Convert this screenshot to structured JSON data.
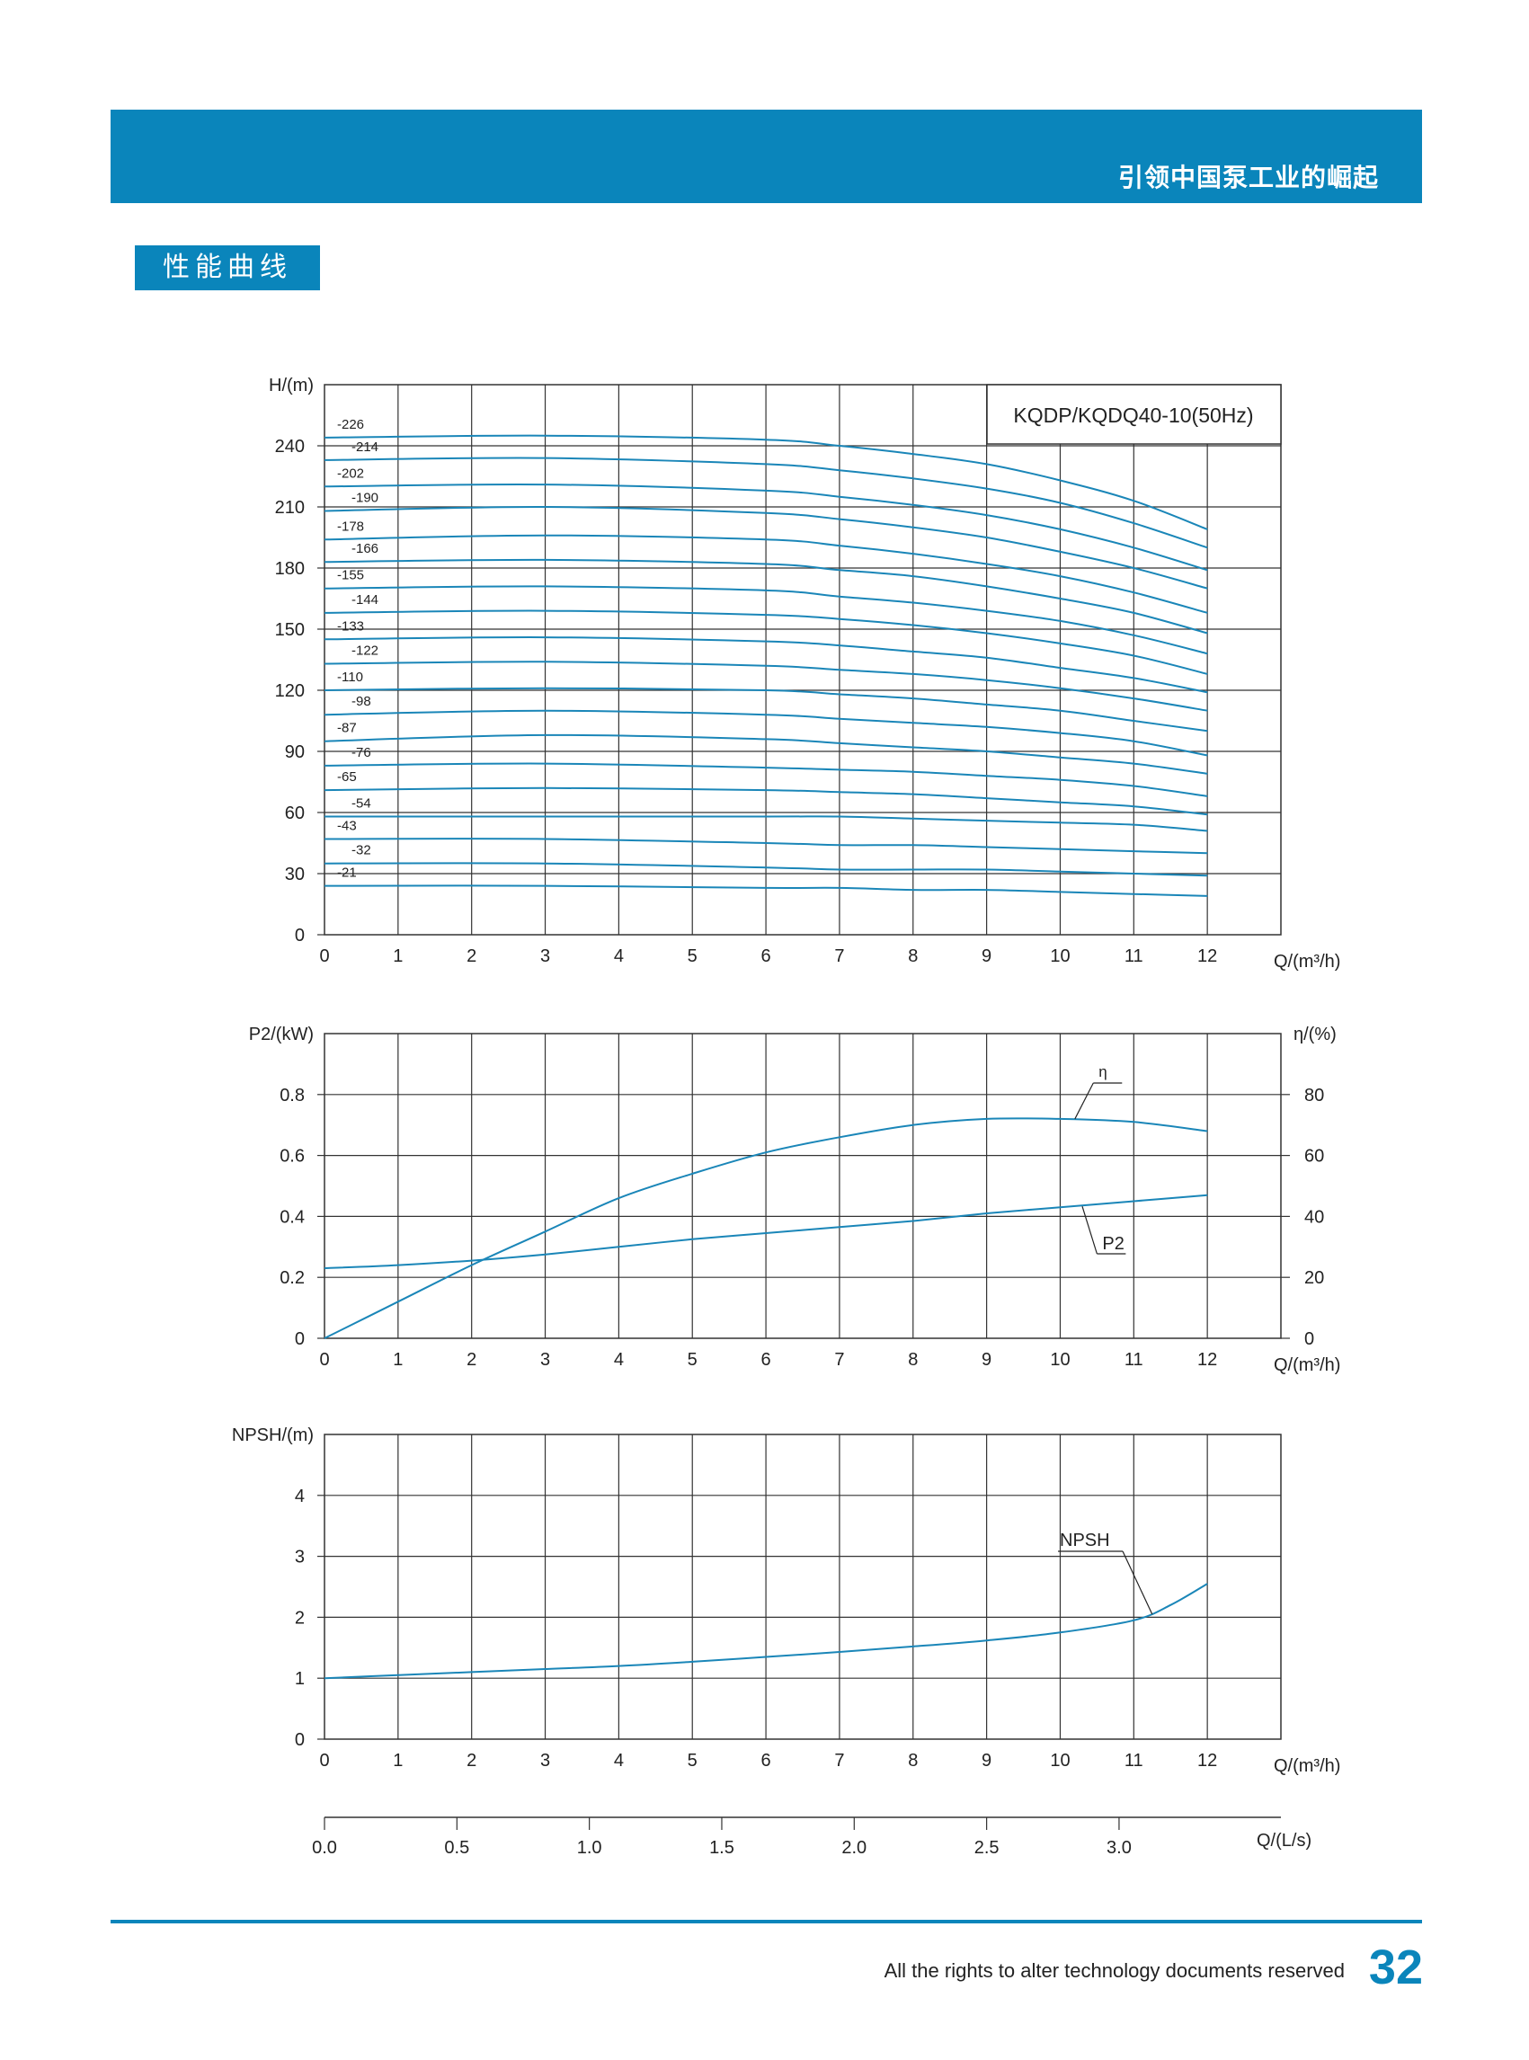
{
  "header": {
    "slogan": "引领中国泵工业的崛起",
    "section_title": "性能曲线"
  },
  "footer": {
    "notice": "All the rights to alter technology documents reserved",
    "page_number": "32"
  },
  "colors": {
    "brand": "#0a85bb",
    "curve": "#1a86b8",
    "grid": "#333333"
  },
  "chart_data": [
    {
      "type": "line",
      "title": "KQDP/KQDQ40-10(50Hz)",
      "ylabel": "H/(m)",
      "xlabel": "Q/(m³/h)",
      "xlim": [
        0,
        13
      ],
      "ylim": [
        0,
        270
      ],
      "x_ticks": [
        "0",
        "1",
        "2",
        "3",
        "4",
        "5",
        "6",
        "7",
        "8",
        "9",
        "10",
        "11",
        "12"
      ],
      "y_ticks": [
        "0",
        "30",
        "60",
        "90",
        "120",
        "150",
        "180",
        "210",
        "240"
      ],
      "grid": true,
      "series": [
        {
          "name": "-226",
          "x": [
            0,
            3,
            6,
            7,
            8,
            9,
            10,
            11,
            12
          ],
          "y": [
            244,
            245,
            243,
            240,
            236,
            231,
            223,
            213,
            199
          ]
        },
        {
          "name": "-214",
          "x": [
            0,
            3,
            6,
            7,
            8,
            9,
            10,
            11,
            12
          ],
          "y": [
            233,
            234,
            231,
            228,
            224,
            219,
            212,
            202,
            190
          ]
        },
        {
          "name": "-202",
          "x": [
            0,
            3,
            6,
            7,
            8,
            9,
            10,
            11,
            12
          ],
          "y": [
            220,
            221,
            218,
            215,
            211,
            206,
            199,
            190,
            179
          ]
        },
        {
          "name": "-190",
          "x": [
            0,
            3,
            6,
            7,
            8,
            9,
            10,
            11,
            12
          ],
          "y": [
            208,
            210,
            207,
            204,
            200,
            195,
            188,
            180,
            170
          ]
        },
        {
          "name": "-178",
          "x": [
            0,
            3,
            6,
            7,
            8,
            9,
            10,
            11,
            12
          ],
          "y": [
            194,
            196,
            194,
            191,
            187,
            182,
            176,
            168,
            158
          ]
        },
        {
          "name": "-166",
          "x": [
            0,
            3,
            6,
            7,
            8,
            9,
            10,
            11,
            12
          ],
          "y": [
            183,
            184,
            182,
            179,
            176,
            171,
            165,
            158,
            148
          ]
        },
        {
          "name": "-155",
          "x": [
            0,
            3,
            6,
            7,
            8,
            9,
            10,
            11,
            12
          ],
          "y": [
            170,
            171,
            169,
            166,
            163,
            159,
            154,
            147,
            138
          ]
        },
        {
          "name": "-144",
          "x": [
            0,
            3,
            6,
            7,
            8,
            9,
            10,
            11,
            12
          ],
          "y": [
            158,
            159,
            157,
            155,
            152,
            148,
            143,
            137,
            128
          ]
        },
        {
          "name": "-133",
          "x": [
            0,
            3,
            6,
            7,
            8,
            9,
            10,
            11,
            12
          ],
          "y": [
            145,
            146,
            144,
            142,
            139,
            136,
            131,
            126,
            119
          ]
        },
        {
          "name": "-122",
          "x": [
            0,
            3,
            6,
            7,
            8,
            9,
            10,
            11,
            12
          ],
          "y": [
            133,
            134,
            132,
            130,
            128,
            125,
            121,
            116,
            110
          ]
        },
        {
          "name": "-110",
          "x": [
            0,
            3,
            6,
            7,
            8,
            9,
            10,
            11,
            12
          ],
          "y": [
            120,
            121,
            120,
            118,
            116,
            113,
            110,
            105,
            100
          ]
        },
        {
          "name": "-98",
          "x": [
            0,
            3,
            6,
            7,
            8,
            9,
            10,
            11,
            12
          ],
          "y": [
            108,
            110,
            108,
            106,
            104,
            102,
            99,
            95,
            88
          ]
        },
        {
          "name": "-87",
          "x": [
            0,
            3,
            6,
            7,
            8,
            9,
            10,
            11,
            12
          ],
          "y": [
            95,
            98,
            96,
            94,
            92,
            90,
            87,
            84,
            79
          ]
        },
        {
          "name": "-76",
          "x": [
            0,
            3,
            6,
            7,
            8,
            9,
            10,
            11,
            12
          ],
          "y": [
            83,
            84,
            82,
            81,
            80,
            78,
            76,
            73,
            68
          ]
        },
        {
          "name": "-65",
          "x": [
            0,
            3,
            6,
            7,
            8,
            9,
            10,
            11,
            12
          ],
          "y": [
            71,
            72,
            71,
            70,
            69,
            67,
            65,
            63,
            59
          ]
        },
        {
          "name": "-54",
          "x": [
            0,
            3,
            6,
            7,
            8,
            9,
            10,
            11,
            12
          ],
          "y": [
            58,
            58,
            58,
            58,
            57,
            56,
            55,
            54,
            51
          ]
        },
        {
          "name": "-43",
          "x": [
            0,
            3,
            6,
            7,
            8,
            9,
            10,
            11,
            12
          ],
          "y": [
            47,
            47,
            45,
            44,
            44,
            43,
            42,
            41,
            40
          ]
        },
        {
          "name": "-32",
          "x": [
            0,
            3,
            6,
            7,
            8,
            9,
            10,
            11,
            12
          ],
          "y": [
            35,
            35,
            33,
            32,
            32,
            32,
            31,
            30,
            29
          ]
        },
        {
          "name": "-21",
          "x": [
            0,
            3,
            6,
            7,
            8,
            9,
            10,
            11,
            12
          ],
          "y": [
            24,
            24,
            23,
            23,
            22,
            22,
            21,
            20,
            19
          ]
        }
      ]
    },
    {
      "type": "line",
      "title": "",
      "ylabel": "P2/(kW)",
      "y2label": "η/(%)",
      "xlabel": "Q/(m³/h)",
      "xlim": [
        0,
        13
      ],
      "ylim": [
        0,
        1
      ],
      "y2lim": [
        0,
        100
      ],
      "x_ticks": [
        "0",
        "1",
        "2",
        "3",
        "4",
        "5",
        "6",
        "7",
        "8",
        "9",
        "10",
        "11",
        "12"
      ],
      "y_ticks": [
        "0",
        "0.2",
        "0.4",
        "0.6",
        "0.8"
      ],
      "y2_ticks": [
        "0",
        "20",
        "40",
        "60",
        "80"
      ],
      "grid": true,
      "series": [
        {
          "name": "η",
          "axis": "right",
          "x": [
            0,
            1,
            2,
            3,
            4,
            5,
            6,
            7,
            8,
            9,
            10,
            11,
            12
          ],
          "y": [
            0,
            12,
            24,
            35,
            46,
            54,
            61,
            66,
            70,
            72,
            72,
            71,
            68
          ]
        },
        {
          "name": "P2",
          "axis": "left",
          "x": [
            0,
            1,
            2,
            3,
            4,
            5,
            6,
            7,
            8,
            9,
            10,
            11,
            12
          ],
          "y": [
            0.23,
            0.24,
            0.255,
            0.275,
            0.3,
            0.325,
            0.345,
            0.365,
            0.385,
            0.41,
            0.43,
            0.45,
            0.47
          ]
        }
      ]
    },
    {
      "type": "line",
      "title": "",
      "ylabel": "NPSH/(m)",
      "xlabel": "Q/(m³/h)",
      "x2label": "Q/(L/s)",
      "xlim": [
        0,
        13
      ],
      "ylim": [
        0,
        5
      ],
      "x_ticks": [
        "0",
        "1",
        "2",
        "3",
        "4",
        "5",
        "6",
        "7",
        "8",
        "9",
        "10",
        "11",
        "12"
      ],
      "x2_ticks": [
        "0.0",
        "0.5",
        "1.0",
        "1.5",
        "2.0",
        "2.5",
        "3.0"
      ],
      "y_ticks": [
        "0",
        "1",
        "2",
        "3",
        "4"
      ],
      "grid": true,
      "series": [
        {
          "name": "NPSH",
          "x": [
            0,
            1,
            2,
            3,
            4,
            5,
            6,
            7,
            8,
            9,
            10,
            11,
            11.5,
            12
          ],
          "y": [
            1.0,
            1.05,
            1.1,
            1.15,
            1.2,
            1.27,
            1.35,
            1.43,
            1.52,
            1.62,
            1.75,
            1.95,
            2.2,
            2.55
          ]
        }
      ]
    }
  ]
}
